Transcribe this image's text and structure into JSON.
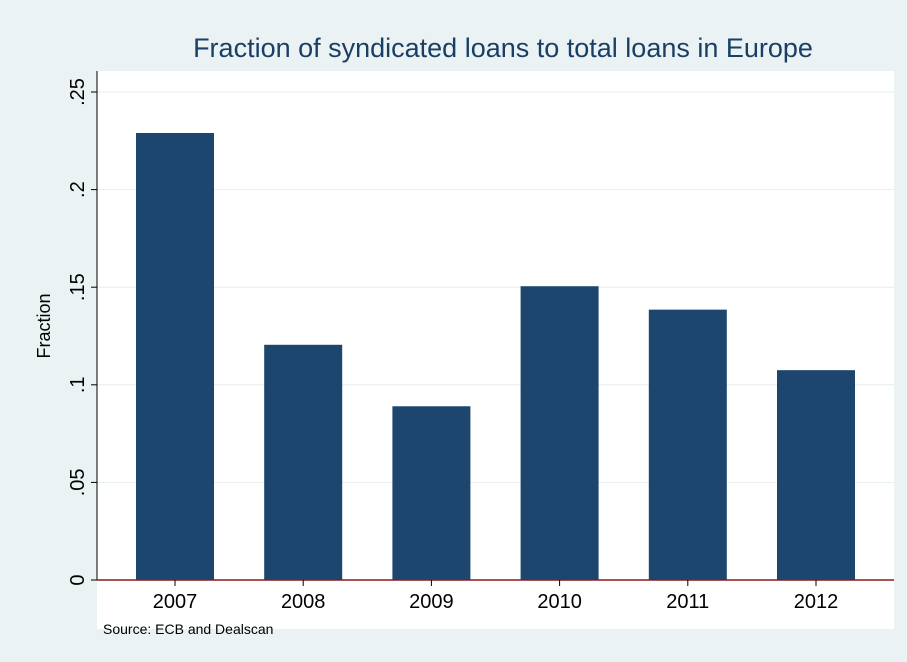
{
  "chart_data": {
    "type": "bar",
    "title": "Fraction of syndicated loans to total loans in Europe",
    "ylabel": "Fraction",
    "xlabel": "",
    "categories": [
      "2007",
      "2008",
      "2009",
      "2010",
      "2011",
      "2012"
    ],
    "values": [
      0.229,
      0.1205,
      0.089,
      0.1505,
      0.1385,
      0.1075
    ],
    "ylim": [
      0,
      0.25
    ],
    "yticks": [
      0,
      0.05,
      0.1,
      0.15,
      0.2,
      0.25
    ],
    "ytick_labels": [
      "0",
      ".05",
      ".1",
      ".15",
      ".2",
      ".25"
    ],
    "grid": true,
    "bar_color": "#1c466e",
    "axis_line_color": "#8b1a1a",
    "note": "Source: ECB and Dealscan"
  }
}
